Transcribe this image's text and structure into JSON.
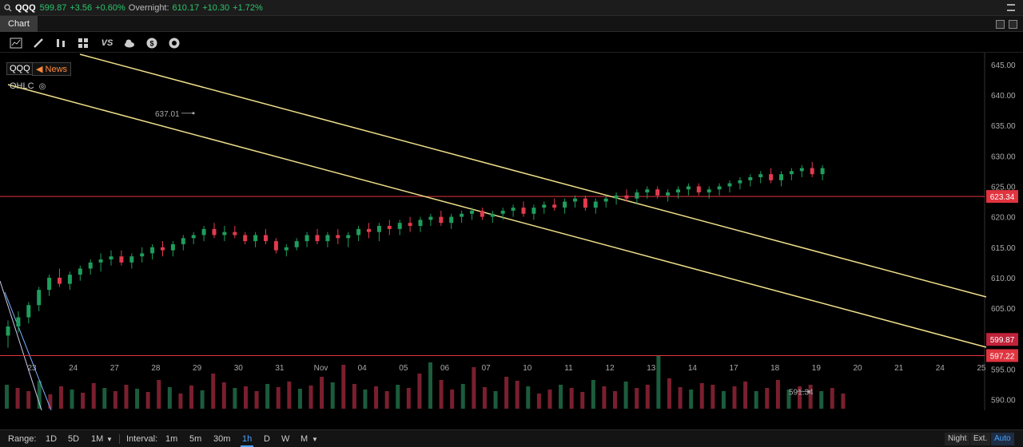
{
  "quote": {
    "symbol": "QQQ",
    "last": "599.87",
    "change": "+3.56",
    "change_pct": "+0.60%",
    "overnight_label": "Overnight:",
    "overnight_last": "610.17",
    "overnight_change": "+10.30",
    "overnight_change_pct": "+1.72%"
  },
  "tab": {
    "label": "Chart"
  },
  "legend": {
    "symbol": "QQQ",
    "news": "News",
    "ohlc": "OHLC"
  },
  "colors": {
    "up": "#1f9d5c",
    "down": "#e23a4e",
    "trendline": "#f0e08a",
    "level": "#e0343f",
    "accent": "#4aa3ff"
  },
  "chart_data": {
    "type": "candlestick",
    "y_ticks": [
      590,
      595,
      600,
      605,
      610,
      615,
      620,
      625,
      630,
      635,
      640,
      645
    ],
    "ylim": [
      588.5,
      645.5
    ],
    "x_tick_labels": [
      "23",
      "24",
      "27",
      "28",
      "29",
      "30",
      "31",
      "Nov",
      "04",
      "05",
      "06",
      "07",
      "10",
      "11",
      "12",
      "13",
      "14",
      "17",
      "18",
      "19",
      "20",
      "21",
      "24",
      "25"
    ],
    "horizontal_levels": [
      {
        "value": 623.34,
        "label": "623.34"
      },
      {
        "value": 597.22,
        "label": "597.22"
      }
    ],
    "last_price": {
      "value": 599.87,
      "label": "599.87"
    },
    "annotations": [
      {
        "label": "637.01",
        "x_index": 5.0,
        "value": 637.01
      },
      {
        "label": "591.34",
        "x_index": 36.8,
        "value": 591.34
      }
    ],
    "candles": [
      [
        0.0,
        600.5,
        603.0,
        598.5,
        602.0
      ],
      [
        0.3,
        602.0,
        604.5,
        601.0,
        603.5
      ],
      [
        0.6,
        603.5,
        606.0,
        602.5,
        605.5
      ],
      [
        0.9,
        605.5,
        608.5,
        604.5,
        608.0
      ],
      [
        1.2,
        608.0,
        610.5,
        607.0,
        610.0
      ],
      [
        1.5,
        610.0,
        611.5,
        608.5,
        609.0
      ],
      [
        1.8,
        609.0,
        611.0,
        608.0,
        610.5
      ],
      [
        2.1,
        610.5,
        612.0,
        609.5,
        611.5
      ],
      [
        2.4,
        611.5,
        613.0,
        610.5,
        612.5
      ],
      [
        2.7,
        612.5,
        614.0,
        611.0,
        613.0
      ],
      [
        3.0,
        613.0,
        614.5,
        612.0,
        613.5
      ],
      [
        3.3,
        613.5,
        614.5,
        612.0,
        612.5
      ],
      [
        3.6,
        612.5,
        614.0,
        611.5,
        613.5
      ],
      [
        3.9,
        613.5,
        615.0,
        612.5,
        614.0
      ],
      [
        4.2,
        614.0,
        615.5,
        613.0,
        615.0
      ],
      [
        4.5,
        615.0,
        616.0,
        613.5,
        614.5
      ],
      [
        4.8,
        614.5,
        616.0,
        613.5,
        615.5
      ],
      [
        5.1,
        615.5,
        617.0,
        614.5,
        616.5
      ],
      [
        5.4,
        616.5,
        617.5,
        615.5,
        617.0
      ],
      [
        5.7,
        617.0,
        618.5,
        616.0,
        618.0
      ],
      [
        6.0,
        618.0,
        619.0,
        616.5,
        617.0
      ],
      [
        6.3,
        617.0,
        618.5,
        616.0,
        617.5
      ],
      [
        6.6,
        617.5,
        618.5,
        616.5,
        617.0
      ],
      [
        6.9,
        617.0,
        617.5,
        615.5,
        616.0
      ],
      [
        7.2,
        616.0,
        617.5,
        615.0,
        617.0
      ],
      [
        7.5,
        617.0,
        618.0,
        615.5,
        616.0
      ],
      [
        7.8,
        616.0,
        616.5,
        614.0,
        614.5
      ],
      [
        8.1,
        614.5,
        615.5,
        613.5,
        615.0
      ],
      [
        8.4,
        615.0,
        616.5,
        614.5,
        616.0
      ],
      [
        8.7,
        616.0,
        617.5,
        615.0,
        617.0
      ],
      [
        9.0,
        617.0,
        618.0,
        615.5,
        616.0
      ],
      [
        9.3,
        616.0,
        617.5,
        615.0,
        617.0
      ],
      [
        9.6,
        617.0,
        618.0,
        615.5,
        616.5
      ],
      [
        9.9,
        616.5,
        617.5,
        615.0,
        617.0
      ],
      [
        10.2,
        617.0,
        618.5,
        616.0,
        618.0
      ],
      [
        10.5,
        618.0,
        619.0,
        616.5,
        617.5
      ],
      [
        10.8,
        617.5,
        619.0,
        616.0,
        618.5
      ],
      [
        11.1,
        618.5,
        619.5,
        617.0,
        618.0
      ],
      [
        11.4,
        618.0,
        619.5,
        617.0,
        619.0
      ],
      [
        11.7,
        619.0,
        620.0,
        617.5,
        618.5
      ],
      [
        12.0,
        618.5,
        620.0,
        617.5,
        619.5
      ],
      [
        12.3,
        619.5,
        620.5,
        618.5,
        620.0
      ],
      [
        12.6,
        620.0,
        621.0,
        618.5,
        619.0
      ],
      [
        12.9,
        619.0,
        620.5,
        618.0,
        620.0
      ],
      [
        13.2,
        620.0,
        621.0,
        619.0,
        620.5
      ],
      [
        13.5,
        620.5,
        621.5,
        619.5,
        621.0
      ],
      [
        13.8,
        621.0,
        621.5,
        619.5,
        620.0
      ],
      [
        14.1,
        620.0,
        621.0,
        619.0,
        620.5
      ],
      [
        14.4,
        620.5,
        621.5,
        619.5,
        621.0
      ],
      [
        14.7,
        621.0,
        622.0,
        620.0,
        621.5
      ],
      [
        15.0,
        621.5,
        622.5,
        620.0,
        620.5
      ],
      [
        15.3,
        620.5,
        622.0,
        619.5,
        621.5
      ],
      [
        15.6,
        621.5,
        622.5,
        620.5,
        622.0
      ],
      [
        15.9,
        622.0,
        623.0,
        621.0,
        621.5
      ],
      [
        16.2,
        621.5,
        623.0,
        620.5,
        622.5
      ],
      [
        16.5,
        622.5,
        623.5,
        621.5,
        623.0
      ],
      [
        16.8,
        623.0,
        623.5,
        621.0,
        621.5
      ],
      [
        17.1,
        621.5,
        623.0,
        620.5,
        622.5
      ],
      [
        17.4,
        622.5,
        623.5,
        621.5,
        623.0
      ],
      [
        17.7,
        623.0,
        624.0,
        622.0,
        623.5
      ],
      [
        18.0,
        623.5,
        624.5,
        622.5,
        623.0
      ],
      [
        18.3,
        623.0,
        624.5,
        622.0,
        624.0
      ],
      [
        18.6,
        624.0,
        625.0,
        623.0,
        624.5
      ],
      [
        18.9,
        624.5,
        625.0,
        623.0,
        623.5
      ],
      [
        19.2,
        623.5,
        624.5,
        622.5,
        624.0
      ],
      [
        19.5,
        624.0,
        625.0,
        623.0,
        624.5
      ],
      [
        19.8,
        624.5,
        625.5,
        623.5,
        625.0
      ],
      [
        20.1,
        625.0,
        625.5,
        623.5,
        624.0
      ],
      [
        20.4,
        624.0,
        625.0,
        623.0,
        624.5
      ],
      [
        20.7,
        624.5,
        625.5,
        623.5,
        625.0
      ],
      [
        21.0,
        625.0,
        626.0,
        624.0,
        625.5
      ],
      [
        21.3,
        625.5,
        626.5,
        624.5,
        626.0
      ],
      [
        21.6,
        626.0,
        627.0,
        625.0,
        626.5
      ],
      [
        21.9,
        626.5,
        627.5,
        625.5,
        627.0
      ],
      [
        22.2,
        627.0,
        628.0,
        625.5,
        626.0
      ],
      [
        22.5,
        626.0,
        627.5,
        625.0,
        627.0
      ],
      [
        22.8,
        627.0,
        628.0,
        626.0,
        627.5
      ],
      [
        23.1,
        627.5,
        628.5,
        626.5,
        628.0
      ],
      [
        23.4,
        628.0,
        629.0,
        626.5,
        627.0
      ],
      [
        23.7,
        627.0,
        628.5,
        626.0,
        628.0
      ]
    ],
    "volume_note": "volume bars shown at bottom"
  },
  "bottom": {
    "range_label": "Range:",
    "ranges": [
      "1D",
      "5D",
      "1M"
    ],
    "interval_label": "Interval:",
    "intervals": [
      "1m",
      "5m",
      "30m",
      "1h",
      "D",
      "W",
      "M"
    ],
    "selected_interval": "1h",
    "night": "Night",
    "ext": "Ext.",
    "auto": "Auto"
  }
}
